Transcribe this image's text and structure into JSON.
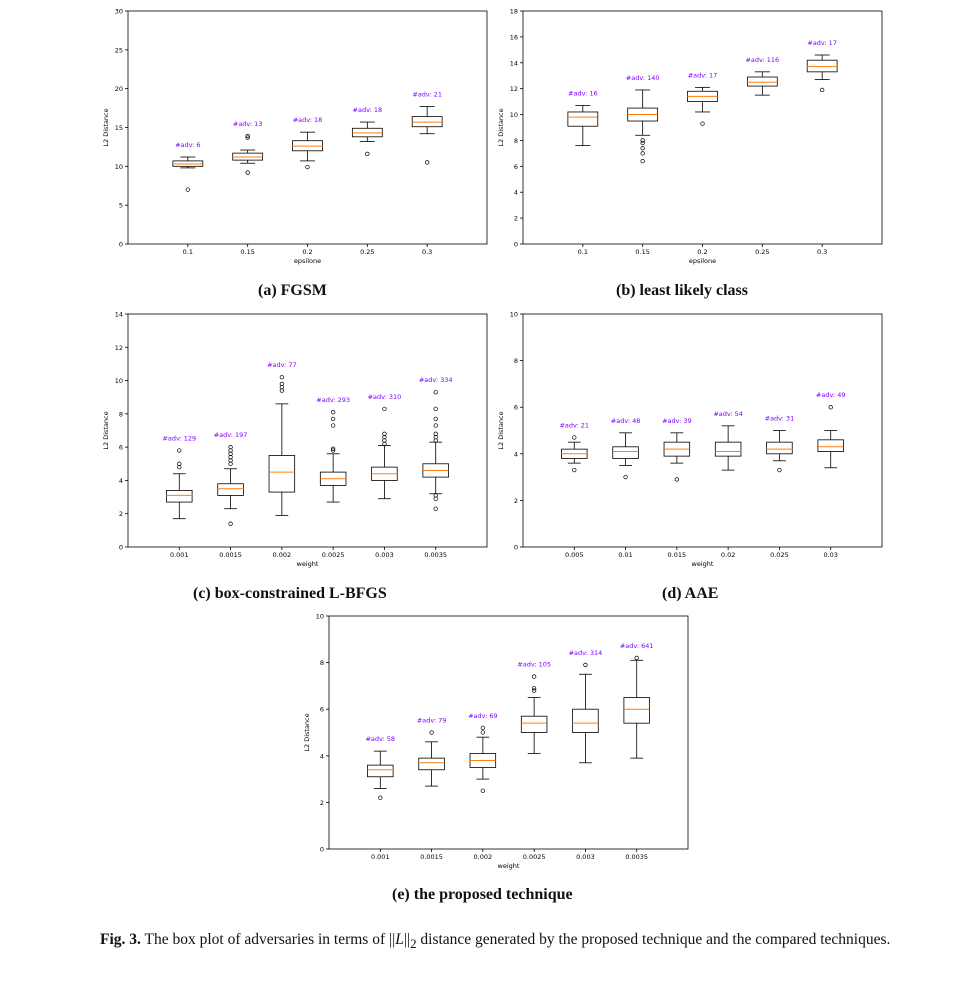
{
  "chart_data": [
    {
      "type": "box",
      "caption": "(a) FGSM",
      "xlabel": "epsilone",
      "ylabel": "L2 Distance",
      "categories": [
        "0.1",
        "0.15",
        "0.2",
        "0.25",
        "0.3"
      ],
      "ylim": [
        0,
        30
      ],
      "yticks": [
        0,
        5,
        10,
        15,
        20,
        25,
        30
      ],
      "ytick_labels": [
        "0",
        "5",
        "10",
        "15",
        "20",
        "25",
        "30"
      ],
      "boxes": [
        {
          "whislo": 9.8,
          "q1": 10.0,
          "med": 10.3,
          "q3": 10.7,
          "whishi": 11.2,
          "fliers": [
            7.0
          ]
        },
        {
          "whislo": 10.4,
          "q1": 10.8,
          "med": 11.2,
          "q3": 11.7,
          "whishi": 12.1,
          "fliers": [
            9.2,
            13.7,
            13.9
          ]
        },
        {
          "whislo": 10.7,
          "q1": 12.0,
          "med": 12.6,
          "q3": 13.3,
          "whishi": 14.4,
          "fliers": [
            9.9
          ]
        },
        {
          "whislo": 13.2,
          "q1": 13.8,
          "med": 14.3,
          "q3": 14.9,
          "whishi": 15.7,
          "fliers": [
            11.6
          ]
        },
        {
          "whislo": 14.2,
          "q1": 15.1,
          "med": 15.7,
          "q3": 16.4,
          "whishi": 17.7,
          "fliers": [
            10.5
          ]
        }
      ],
      "annotations": [
        "#adv: 6",
        "#adv: 13",
        "#adv: 18",
        "#adv: 18",
        "#adv: 21"
      ]
    },
    {
      "type": "box",
      "caption": "(b) least likely class",
      "xlabel": "epsilone",
      "ylabel": "L2 Distance",
      "categories": [
        "0.1",
        "0.15",
        "0.2",
        "0.25",
        "0.3"
      ],
      "ylim": [
        0,
        18
      ],
      "yticks": [
        0,
        2,
        4,
        6,
        8,
        10,
        12,
        14,
        16,
        18
      ],
      "ytick_labels": [
        "0",
        "2",
        "4",
        "6",
        "8",
        "10",
        "12",
        "14",
        "16",
        "18"
      ],
      "boxes": [
        {
          "whislo": 7.6,
          "q1": 9.1,
          "med": 9.8,
          "q3": 10.2,
          "whishi": 10.7,
          "fliers": []
        },
        {
          "whislo": 8.4,
          "q1": 9.5,
          "med": 10.0,
          "q3": 10.5,
          "whishi": 11.9,
          "fliers": [
            6.4,
            7.0,
            7.4,
            7.8,
            8.0
          ]
        },
        {
          "whislo": 10.2,
          "q1": 11.0,
          "med": 11.4,
          "q3": 11.8,
          "whishi": 12.1,
          "fliers": [
            9.3
          ]
        },
        {
          "whislo": 11.5,
          "q1": 12.2,
          "med": 12.5,
          "q3": 12.9,
          "whishi": 13.3,
          "fliers": []
        },
        {
          "whislo": 12.7,
          "q1": 13.3,
          "med": 13.7,
          "q3": 14.2,
          "whishi": 14.6,
          "fliers": [
            11.9
          ]
        }
      ],
      "annotations": [
        "#adv: 16",
        "#adv: 140",
        "#adv: 17",
        "#adv: 116",
        "#adv: 17"
      ]
    },
    {
      "type": "box",
      "caption": "(c) box-constrained L-BFGS",
      "xlabel": "weight",
      "ylabel": "L2 Distance",
      "categories": [
        "0.001",
        "0.0015",
        "0.002",
        "0.0025",
        "0.003",
        "0.0035"
      ],
      "ylim": [
        0,
        14
      ],
      "yticks": [
        0,
        2,
        4,
        6,
        8,
        10,
        12,
        14
      ],
      "ytick_labels": [
        "0",
        "2",
        "4",
        "6",
        "8",
        "10",
        "12",
        "14"
      ],
      "boxes": [
        {
          "whislo": 1.7,
          "q1": 2.7,
          "med": 3.1,
          "q3": 3.4,
          "whishi": 4.4,
          "fliers": [
            4.8,
            5.0,
            5.8
          ]
        },
        {
          "whislo": 2.3,
          "q1": 3.1,
          "med": 3.5,
          "q3": 3.8,
          "whishi": 4.7,
          "fliers": [
            1.4,
            5.0,
            5.2,
            5.4,
            5.6,
            5.8,
            6.0
          ]
        },
        {
          "whislo": 1.9,
          "q1": 3.3,
          "med": 4.5,
          "q3": 5.5,
          "whishi": 8.6,
          "fliers": [
            9.4,
            9.6,
            9.8,
            10.2
          ]
        },
        {
          "whislo": 2.7,
          "q1": 3.7,
          "med": 4.1,
          "q3": 4.5,
          "whishi": 5.6,
          "fliers": [
            5.8,
            5.9,
            7.3,
            7.7,
            8.1
          ]
        },
        {
          "whislo": 2.9,
          "q1": 4.0,
          "med": 4.4,
          "q3": 4.8,
          "whishi": 6.1,
          "fliers": [
            6.2,
            6.4,
            6.6,
            6.8,
            8.3
          ]
        },
        {
          "whislo": 3.2,
          "q1": 4.2,
          "med": 4.6,
          "q3": 5.0,
          "whishi": 6.3,
          "fliers": [
            2.3,
            2.9,
            3.1,
            6.4,
            6.6,
            6.8,
            7.3,
            7.7,
            8.3,
            9.3
          ]
        }
      ],
      "annotations": [
        "#adv: 129",
        "#adv: 197",
        "#adv: 77",
        "#adv: 293",
        "#adv: 310",
        "#adv: 334"
      ]
    },
    {
      "type": "box",
      "caption": "(d) AAE",
      "xlabel": "weight",
      "ylabel": "L2 Distance",
      "categories": [
        "0.005",
        "0.01",
        "0.015",
        "0.02",
        "0.025",
        "0.03"
      ],
      "ylim": [
        0,
        10
      ],
      "yticks": [
        0,
        2,
        4,
        6,
        8,
        10
      ],
      "ytick_labels": [
        "0",
        "2",
        "4",
        "6",
        "8",
        "10"
      ],
      "boxes": [
        {
          "whislo": 3.6,
          "q1": 3.8,
          "med": 4.0,
          "q3": 4.2,
          "whishi": 4.5,
          "fliers": [
            3.3,
            4.7
          ]
        },
        {
          "whislo": 3.5,
          "q1": 3.8,
          "med": 4.1,
          "q3": 4.3,
          "whishi": 4.9,
          "fliers": [
            3.0
          ]
        },
        {
          "whislo": 3.6,
          "q1": 3.9,
          "med": 4.2,
          "q3": 4.5,
          "whishi": 4.9,
          "fliers": [
            2.9
          ]
        },
        {
          "whislo": 3.3,
          "q1": 3.9,
          "med": 4.1,
          "q3": 4.5,
          "whishi": 5.2,
          "fliers": []
        },
        {
          "whislo": 3.7,
          "q1": 4.0,
          "med": 4.2,
          "q3": 4.5,
          "whishi": 5.0,
          "fliers": [
            3.3
          ]
        },
        {
          "whislo": 3.4,
          "q1": 4.1,
          "med": 4.3,
          "q3": 4.6,
          "whishi": 5.0,
          "fliers": [
            6.0
          ]
        }
      ],
      "annotations": [
        "#adv: 21",
        "#adv: 48",
        "#adv: 39",
        "#adv: 54",
        "#adv: 31",
        "#adv: 49"
      ]
    },
    {
      "type": "box",
      "caption": "(e) the proposed technique",
      "xlabel": "weight",
      "ylabel": "L2 Distance",
      "categories": [
        "0.001",
        "0.0015",
        "0.002",
        "0.0025",
        "0.003",
        "0.0035"
      ],
      "ylim": [
        0,
        10
      ],
      "yticks": [
        0,
        2,
        4,
        6,
        8,
        10
      ],
      "ytick_labels": [
        "0",
        "2",
        "4",
        "6",
        "8",
        "10"
      ],
      "boxes": [
        {
          "whislo": 2.6,
          "q1": 3.1,
          "med": 3.4,
          "q3": 3.6,
          "whishi": 4.2,
          "fliers": [
            2.2
          ]
        },
        {
          "whislo": 2.7,
          "q1": 3.4,
          "med": 3.7,
          "q3": 3.9,
          "whishi": 4.6,
          "fliers": [
            5.0
          ]
        },
        {
          "whislo": 3.0,
          "q1": 3.5,
          "med": 3.8,
          "q3": 4.1,
          "whishi": 4.8,
          "fliers": [
            2.5,
            5.0,
            5.2
          ]
        },
        {
          "whislo": 4.1,
          "q1": 5.0,
          "med": 5.4,
          "q3": 5.7,
          "whishi": 6.5,
          "fliers": [
            6.8,
            6.9,
            7.4
          ]
        },
        {
          "whislo": 3.7,
          "q1": 5.0,
          "med": 5.4,
          "q3": 6.0,
          "whishi": 7.5,
          "fliers": [
            7.9
          ]
        },
        {
          "whislo": 3.9,
          "q1": 5.4,
          "med": 6.0,
          "q3": 6.5,
          "whishi": 8.1,
          "fliers": [
            8.2
          ]
        }
      ],
      "annotations": [
        "#adv: 58",
        "#adv: 79",
        "#adv: 69",
        "#adv: 105",
        "#adv: 314",
        "#adv: 641"
      ]
    }
  ],
  "figure_caption": {
    "label": "Fig. 3.",
    "text_before": "The box plot of adversaries in terms of ||",
    "text_var": "L",
    "text_mid": "||",
    "text_sub": "2",
    "text_after": " distance generated by the proposed technique and the compared techniques."
  },
  "colors": {
    "box": "#000000",
    "median": "#ff7f0e",
    "annotation": "#7f00ff"
  }
}
